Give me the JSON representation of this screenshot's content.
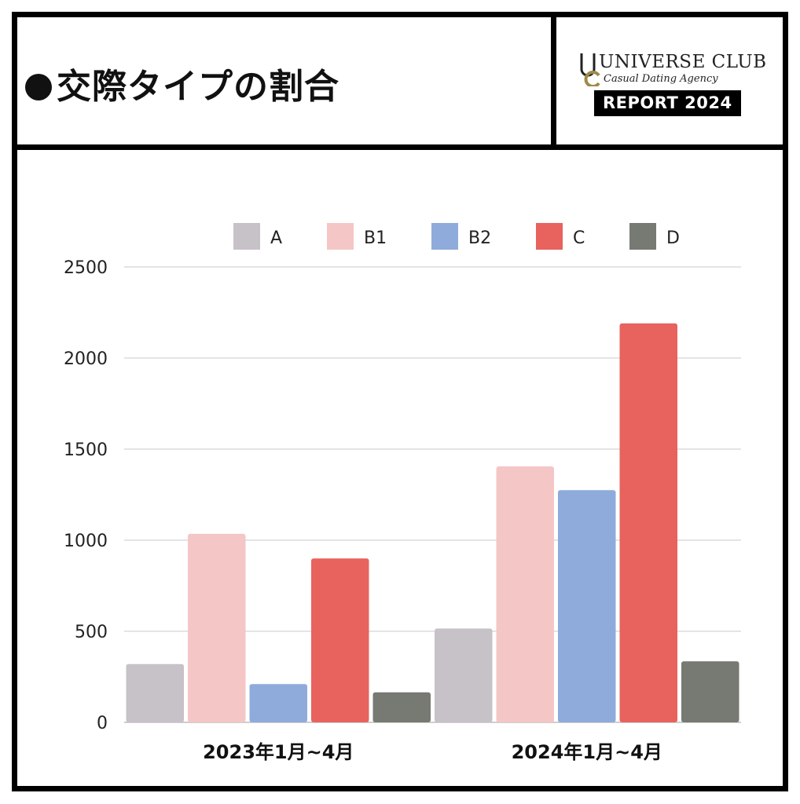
{
  "header": {
    "title": "交際タイプの割合",
    "brand_name": "UNIVERSE CLUB",
    "brand_tagline": "Casual Dating Agency",
    "report_label": "REPORT 2024"
  },
  "colors": {
    "A": "#c7c1c8",
    "B1": "#f5c6c6",
    "B2": "#8eabdb",
    "C": "#e8625e",
    "D": "#767a72",
    "gold": "#a08a4a"
  },
  "chart_data": {
    "type": "bar",
    "title": "交際タイプの割合",
    "xlabel": "",
    "ylabel": "",
    "categories": [
      "2023年1月~4月",
      "2024年1月~4月"
    ],
    "series": [
      {
        "name": "A",
        "values": [
          320,
          515
        ]
      },
      {
        "name": "B1",
        "values": [
          1035,
          1405
        ]
      },
      {
        "name": "B2",
        "values": [
          210,
          1275
        ]
      },
      {
        "name": "C",
        "values": [
          900,
          2190
        ]
      },
      {
        "name": "D",
        "values": [
          165,
          335
        ]
      }
    ],
    "ylim": [
      0,
      2500
    ],
    "yticks": [
      0,
      500,
      1000,
      1500,
      2000,
      2500
    ],
    "grid": true,
    "legend_position": "top-center"
  }
}
